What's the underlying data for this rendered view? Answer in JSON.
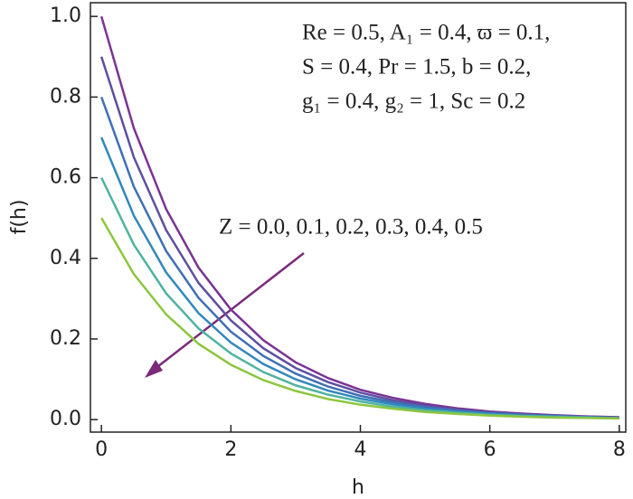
{
  "chart_data": {
    "type": "line",
    "xlabel": "h",
    "ylabel": "f(h)",
    "annotations": [
      "Re = 0.5, A₁ = 0.4, ϖ = 0.1,",
      "S = 0.4, Pr = 1.5, b = 0.2,",
      "g₁ = 0.4, g₂ = 1, Sc = 0.2",
      "Z = 0.0, 0.1, 0.2, 0.3, 0.4, 0.5"
    ],
    "x": [
      0,
      0.5,
      1,
      1.5,
      2,
      2.5,
      3,
      3.5,
      4,
      4.5,
      5,
      5.5,
      6,
      6.5,
      7,
      7.5,
      8
    ],
    "series": [
      {
        "color": "#7b3294",
        "values": [
          1.0,
          0.723,
          0.522,
          0.377,
          0.273,
          0.197,
          0.142,
          0.103,
          0.074,
          0.054,
          0.039,
          0.028,
          0.02,
          0.015,
          0.011,
          0.008,
          0.006
        ]
      },
      {
        "color": "#5e4fa2",
        "values": [
          0.9,
          0.651,
          0.47,
          0.339,
          0.246,
          0.177,
          0.128,
          0.093,
          0.067,
          0.048,
          0.035,
          0.025,
          0.018,
          0.013,
          0.01,
          0.007,
          0.005
        ]
      },
      {
        "color": "#3f6fb5",
        "values": [
          0.8,
          0.578,
          0.418,
          0.302,
          0.218,
          0.158,
          0.114,
          0.082,
          0.059,
          0.043,
          0.031,
          0.022,
          0.016,
          0.012,
          0.009,
          0.006,
          0.004
        ]
      },
      {
        "color": "#3288bd",
        "values": [
          0.7,
          0.506,
          0.365,
          0.264,
          0.191,
          0.138,
          0.1,
          0.072,
          0.052,
          0.038,
          0.027,
          0.02,
          0.014,
          0.01,
          0.008,
          0.006,
          0.004
        ]
      },
      {
        "color": "#4fb3a0",
        "values": [
          0.6,
          0.434,
          0.313,
          0.226,
          0.164,
          0.118,
          0.085,
          0.062,
          0.045,
          0.032,
          0.023,
          0.017,
          0.012,
          0.009,
          0.007,
          0.005,
          0.003
        ]
      },
      {
        "color": "#8cc63f",
        "values": [
          0.5,
          0.361,
          0.261,
          0.188,
          0.136,
          0.098,
          0.071,
          0.051,
          0.037,
          0.027,
          0.019,
          0.014,
          0.01,
          0.007,
          0.005,
          0.004,
          0.003
        ]
      }
    ],
    "xlim": [
      -0.17,
      8.1
    ],
    "ylim": [
      -0.031,
      1.034
    ],
    "xticks": [
      0,
      2,
      4,
      6,
      8
    ],
    "yticks": [
      {
        "value": 0,
        "label": "0.0"
      },
      0.2,
      0.4,
      0.6,
      0.8,
      {
        "value": 1,
        "label": "1.0"
      }
    ]
  }
}
